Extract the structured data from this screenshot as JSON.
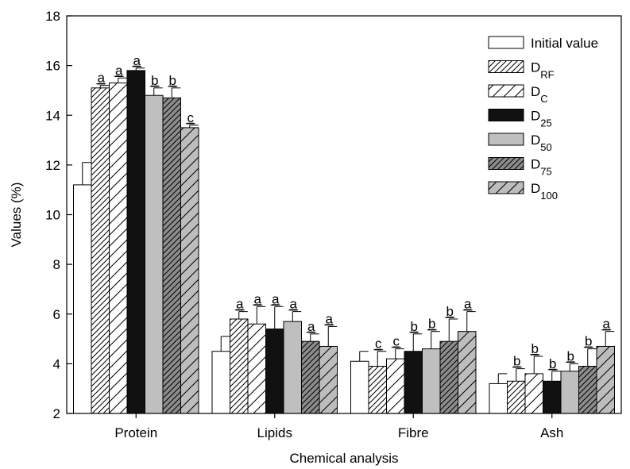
{
  "chart_data": {
    "type": "bar",
    "title": "",
    "xlabel": "Chemical analysis",
    "ylabel": "Values (%)",
    "ylim": [
      2,
      18
    ],
    "yticks": [
      2,
      4,
      6,
      8,
      10,
      12,
      14,
      16,
      18
    ],
    "grid": false,
    "legend_position": "top-right",
    "categories": [
      "Protein",
      "Lipids",
      "Fibre",
      "Ash"
    ],
    "series": [
      {
        "name": "Initial value",
        "name_base": "Initial value",
        "name_sub": "",
        "fill": "white",
        "values": [
          11.2,
          4.5,
          4.1,
          3.2
        ],
        "errors": [
          0.9,
          0.6,
          0.4,
          0.4
        ],
        "labels": [
          "",
          "",
          "",
          ""
        ]
      },
      {
        "name": "DRF",
        "name_base": "D",
        "name_sub": "RF",
        "fill": "hatch-fine",
        "values": [
          15.1,
          5.8,
          3.9,
          3.3
        ],
        "errors": [
          0.1,
          0.3,
          0.6,
          0.5
        ],
        "labels": [
          "a",
          "a",
          "c",
          "b"
        ]
      },
      {
        "name": "DC",
        "name_base": "D",
        "name_sub": "C",
        "fill": "hatch-wide",
        "values": [
          15.3,
          5.6,
          4.2,
          3.6
        ],
        "errors": [
          0.2,
          0.7,
          0.4,
          0.7
        ],
        "labels": [
          "a",
          "a",
          "c",
          "b"
        ]
      },
      {
        "name": "D25",
        "name_base": "D",
        "name_sub": "25",
        "fill": "black",
        "values": [
          15.8,
          5.4,
          4.5,
          3.3
        ],
        "errors": [
          0.1,
          0.9,
          0.7,
          0.4
        ],
        "labels": [
          "a",
          "a",
          "b",
          "b"
        ]
      },
      {
        "name": "D50",
        "name_base": "D",
        "name_sub": "50",
        "fill": "gray",
        "values": [
          14.8,
          5.7,
          4.6,
          3.7
        ],
        "errors": [
          0.3,
          0.4,
          0.7,
          0.3
        ],
        "labels": [
          "b",
          "a",
          "b",
          "b"
        ]
      },
      {
        "name": "D75",
        "name_base": "D",
        "name_sub": "75",
        "fill": "gray-hatch-fine",
        "values": [
          14.7,
          4.9,
          4.9,
          3.9
        ],
        "errors": [
          0.4,
          0.3,
          0.9,
          0.7
        ],
        "labels": [
          "b",
          "a",
          "b",
          "b"
        ]
      },
      {
        "name": "D100",
        "name_base": "D",
        "name_sub": "100",
        "fill": "gray-hatch-wide",
        "values": [
          13.5,
          4.7,
          5.3,
          4.7
        ],
        "errors": [
          0.1,
          0.8,
          0.8,
          0.6
        ],
        "labels": [
          "c",
          "a",
          "a",
          "a"
        ]
      }
    ]
  }
}
